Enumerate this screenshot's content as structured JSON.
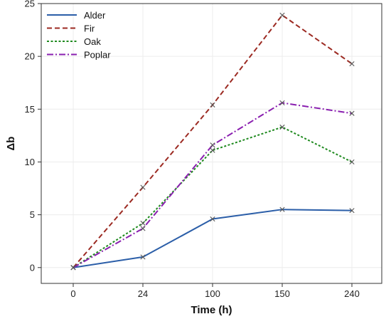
{
  "chart_data": {
    "type": "line",
    "categories": [
      "0",
      "24",
      "100",
      "150",
      "240"
    ],
    "series": [
      {
        "name": "Alder",
        "color": "#2b5ea8",
        "dash": "solid",
        "values": [
          0,
          1.0,
          4.6,
          5.5,
          5.4
        ]
      },
      {
        "name": "Fir",
        "color": "#9c2a22",
        "dash": "dashed",
        "values": [
          0,
          7.6,
          15.4,
          23.9,
          19.3
        ]
      },
      {
        "name": "Oak",
        "color": "#1f8a1f",
        "dash": "dotted",
        "values": [
          0,
          4.2,
          11.1,
          13.3,
          10.0
        ]
      },
      {
        "name": "Poplar",
        "color": "#8a1fb0",
        "dash": "dashdot",
        "values": [
          0,
          3.7,
          11.6,
          15.6,
          14.6
        ]
      }
    ],
    "xlabel": "Time (h)",
    "ylabel": "Δb",
    "ylim": [
      -1.5,
      25
    ],
    "yticks": [
      0,
      5,
      10,
      15,
      20,
      25
    ],
    "grid": true,
    "legend_position": "top-left",
    "marker": "x"
  }
}
